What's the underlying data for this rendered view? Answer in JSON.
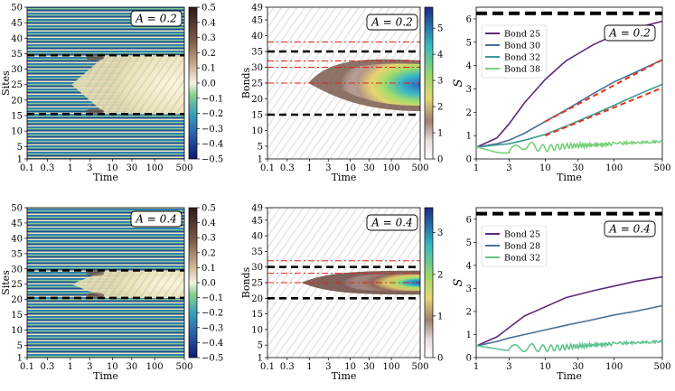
{
  "chart_data": [
    {
      "id": "sites_A02",
      "type": "heatmap",
      "annotation": "A = 0.2",
      "xlabel": "Time",
      "ylabel": "Sites",
      "xticks": [
        "0.1",
        "0.3",
        "1",
        "3",
        "10",
        "30",
        "100",
        "500"
      ],
      "yticks": [
        "1",
        "5",
        "10",
        "15",
        "20",
        "25",
        "30",
        "35",
        "40",
        "45",
        "50"
      ],
      "ylim": [
        1,
        50
      ],
      "dashed_lines": [
        15.5,
        34.5
      ],
      "colorbar": {
        "min": -0.5,
        "max": 0.5,
        "ticks": [
          "0.5",
          "0.4",
          "0.3",
          "0.2",
          "0.1",
          "0.0",
          "−0.1",
          "−0.2",
          "−0.3",
          "−0.4",
          "−0.5"
        ]
      }
    },
    {
      "id": "bonds_A02",
      "type": "heatmap",
      "annotation": "A = 0.2",
      "xlabel": "Time",
      "ylabel": "Bonds",
      "xticks": [
        "0.1",
        "0.3",
        "1",
        "3",
        "10",
        "30",
        "100",
        "500"
      ],
      "yticks": [
        "1",
        "5",
        "10",
        "15",
        "20",
        "25",
        "30",
        "35",
        "40",
        "45",
        "49"
      ],
      "ylim": [
        1,
        49
      ],
      "dashed_lines": [
        15,
        35
      ],
      "dashdot_lines": [
        25,
        30,
        32,
        38
      ],
      "colorbar": {
        "min": 0,
        "max": 5.8,
        "ticks": [
          "5",
          "4",
          "3",
          "2",
          "1",
          "0"
        ]
      }
    },
    {
      "id": "entropy_A02",
      "type": "line",
      "annotation": "A = 0.2",
      "xlabel": "Time",
      "ylabel": "S",
      "xticks": [
        "1",
        "3",
        "10",
        "30",
        "100",
        "500"
      ],
      "yticks": [
        "0",
        "1",
        "2",
        "3",
        "4",
        "5",
        "6"
      ],
      "xlim": [
        1,
        500
      ],
      "ylim": [
        0,
        6.5
      ],
      "dashed_max": 6.24,
      "series": [
        {
          "name": "Bond 25",
          "color": "#5e2a7e",
          "x": [
            1,
            2,
            3,
            5,
            10,
            20,
            50,
            100,
            200,
            500
          ],
          "y": [
            0.5,
            0.9,
            1.5,
            2.4,
            3.4,
            4.2,
            4.9,
            5.3,
            5.6,
            5.9
          ]
        },
        {
          "name": "Bond 30",
          "color": "#4a6f95",
          "x": [
            1,
            2,
            3,
            5,
            10,
            20,
            50,
            100,
            200,
            500
          ],
          "y": [
            0.5,
            0.65,
            0.8,
            1.1,
            1.6,
            2.1,
            2.8,
            3.3,
            3.7,
            4.25
          ]
        },
        {
          "name": "Bond 32",
          "color": "#3a9a91",
          "x": [
            1,
            2,
            3,
            5,
            10,
            20,
            50,
            100,
            200,
            500
          ],
          "y": [
            0.5,
            0.6,
            0.65,
            0.8,
            1.05,
            1.4,
            1.9,
            2.3,
            2.7,
            3.2
          ]
        },
        {
          "name": "Bond 38",
          "color": "#78d07a",
          "x": [
            1,
            2,
            3,
            5,
            10,
            20,
            50,
            100,
            200,
            500
          ],
          "y": [
            0.5,
            0.3,
            0.25,
            0.6,
            0.45,
            0.55,
            0.6,
            0.65,
            0.7,
            0.75
          ]
        }
      ],
      "fits": [
        {
          "x": [
            10,
            500
          ],
          "y": [
            1.6,
            4.25
          ]
        },
        {
          "x": [
            10,
            500
          ],
          "y": [
            1.0,
            3.05
          ]
        }
      ]
    },
    {
      "id": "sites_A04",
      "type": "heatmap",
      "annotation": "A = 0.4",
      "xlabel": "Time",
      "ylabel": "Sites",
      "xticks": [
        "0.1",
        "0.3",
        "1",
        "3",
        "10",
        "30",
        "100",
        "500"
      ],
      "yticks": [
        "1",
        "5",
        "10",
        "15",
        "20",
        "25",
        "30",
        "35",
        "40",
        "45",
        "50"
      ],
      "ylim": [
        1,
        50
      ],
      "dashed_lines": [
        20.5,
        29.5
      ],
      "colorbar": {
        "min": -0.5,
        "max": 0.5,
        "ticks": [
          "0.5",
          "0.4",
          "0.3",
          "0.2",
          "0.1",
          "0.0",
          "−0.1",
          "−0.2",
          "−0.3",
          "−0.4",
          "−0.5"
        ]
      }
    },
    {
      "id": "bonds_A04",
      "type": "heatmap",
      "annotation": "A = 0.4",
      "xlabel": "Time",
      "ylabel": "Bonds",
      "xticks": [
        "0.1",
        "0.3",
        "1",
        "3",
        "10",
        "30",
        "100",
        "500"
      ],
      "yticks": [
        "1",
        "5",
        "10",
        "15",
        "20",
        "25",
        "30",
        "35",
        "40",
        "45",
        "49"
      ],
      "ylim": [
        1,
        49
      ],
      "dashed_lines": [
        20,
        30
      ],
      "dashdot_lines": [
        25,
        28,
        32
      ],
      "colorbar": {
        "min": 0,
        "max": 3.6,
        "ticks": [
          "3",
          "2",
          "1",
          "0"
        ]
      }
    },
    {
      "id": "entropy_A04",
      "type": "line",
      "annotation": "A = 0.4",
      "xlabel": "Time",
      "ylabel": "S",
      "xticks": [
        "1",
        "3",
        "10",
        "30",
        "100",
        "500"
      ],
      "yticks": [
        "0",
        "1",
        "2",
        "3",
        "4",
        "5",
        "6"
      ],
      "xlim": [
        1,
        500
      ],
      "ylim": [
        0,
        6.5
      ],
      "dashed_max": 6.24,
      "series": [
        {
          "name": "Bond 25",
          "color": "#5e2a7e",
          "x": [
            1,
            2,
            3,
            5,
            10,
            20,
            50,
            100,
            200,
            500
          ],
          "y": [
            0.5,
            0.9,
            1.3,
            1.8,
            2.2,
            2.6,
            2.9,
            3.1,
            3.3,
            3.5
          ]
        },
        {
          "name": "Bond 28",
          "color": "#4a6f95",
          "x": [
            1,
            2,
            3,
            5,
            10,
            20,
            50,
            100,
            200,
            500
          ],
          "y": [
            0.5,
            0.7,
            0.85,
            1.0,
            1.2,
            1.4,
            1.65,
            1.85,
            2.0,
            2.25
          ]
        },
        {
          "name": "Bond 32",
          "color": "#5fc48e",
          "x": [
            1,
            2,
            3,
            5,
            10,
            20,
            50,
            100,
            200,
            500
          ],
          "y": [
            0.5,
            0.4,
            0.3,
            0.45,
            0.4,
            0.45,
            0.55,
            0.6,
            0.65,
            0.7
          ]
        }
      ],
      "fits": []
    }
  ]
}
